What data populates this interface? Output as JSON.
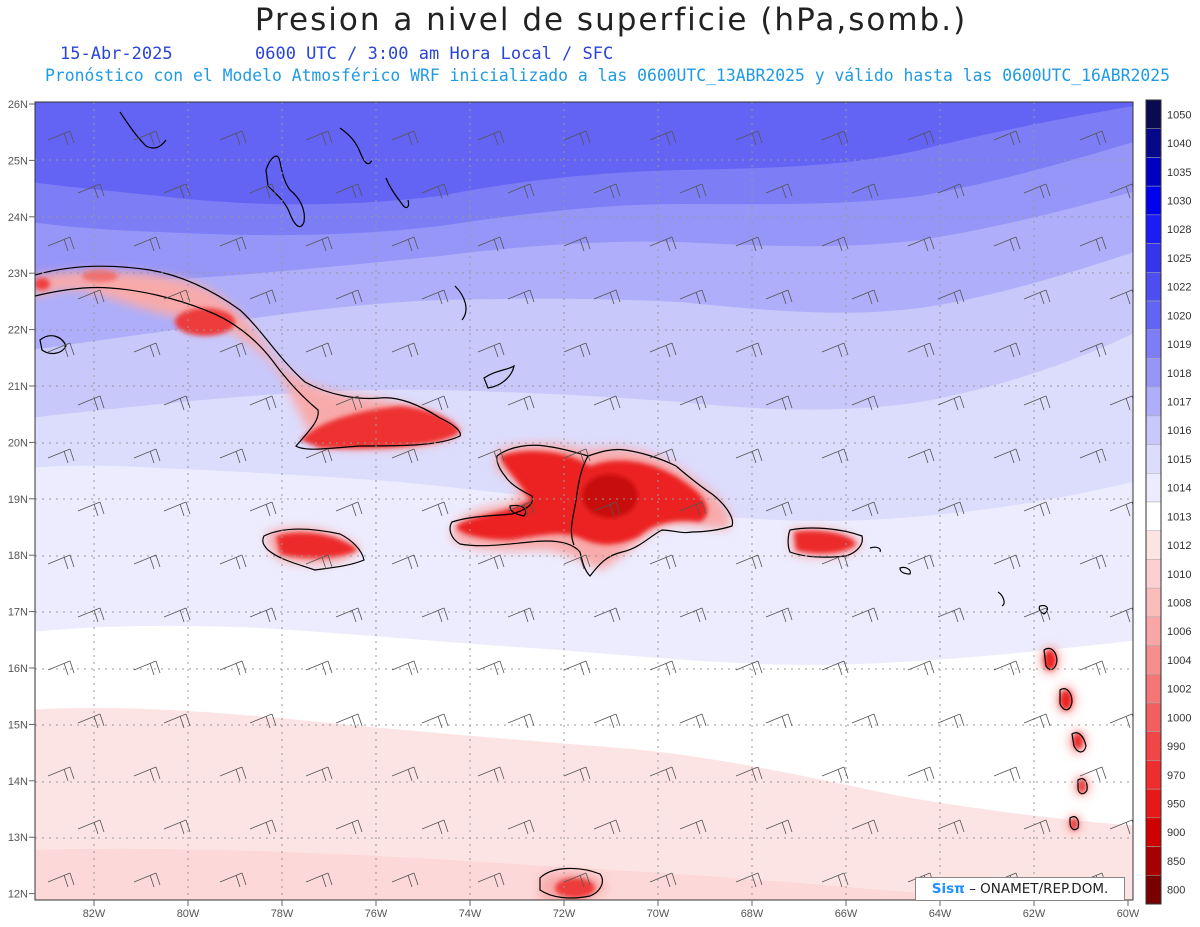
{
  "header": {
    "title": "Presion a nivel de superficie (hPa,somb.)",
    "date": "15-Abr-2025",
    "time_info": "0600 UTC / 3:00 am Hora Local / SFC",
    "model_info": "Pronóstico con el Modelo Atmosférico WRF inicializado a las 0600UTC_13ABR2025 y válido hasta las  0600UTC_16ABR2025"
  },
  "axes": {
    "lat_labels": [
      "26N",
      "25N",
      "24N",
      "23N",
      "22N",
      "21N",
      "20N",
      "19N",
      "18N",
      "17N",
      "16N",
      "15N",
      "14N",
      "13N",
      "12N"
    ],
    "lon_labels": [
      "82W",
      "80W",
      "78W",
      "76W",
      "74W",
      "72W",
      "70W",
      "68W",
      "66W",
      "64W",
      "62W",
      "60W"
    ],
    "lat_range": [
      12,
      26
    ],
    "lon_range": [
      -83.2,
      -59.8
    ]
  },
  "colorbar": {
    "levels": [
      "1050",
      "1040",
      "1035",
      "1030",
      "1028",
      "1025",
      "1022",
      "1020",
      "1019",
      "1018",
      "1017",
      "1016",
      "1015",
      "1014",
      "1013",
      "1012",
      "1010",
      "1008",
      "1006",
      "1004",
      "1002",
      "1000",
      "990",
      "970",
      "950",
      "900",
      "850",
      "800"
    ],
    "colors": [
      "#0a0a50",
      "#07078c",
      "#0000c4",
      "#0000f0",
      "#1c1cf4",
      "#3535f0",
      "#4d4df2",
      "#6464f4",
      "#7d7df6",
      "#9696f8",
      "#aeaefa",
      "#c8c8fb",
      "#dcdcfd",
      "#ececfe",
      "#ffffff",
      "#fde4e4",
      "#fcd0d0",
      "#fbbcbc",
      "#f9a6a6",
      "#f78e8e",
      "#f57676",
      "#f35e5e",
      "#f04646",
      "#ee2e2e",
      "#e81818",
      "#d00000",
      "#a80000",
      "#780000"
    ]
  },
  "credit": {
    "brand": "Sisπ",
    "text": "– ONAMET/REP.DOM."
  }
}
